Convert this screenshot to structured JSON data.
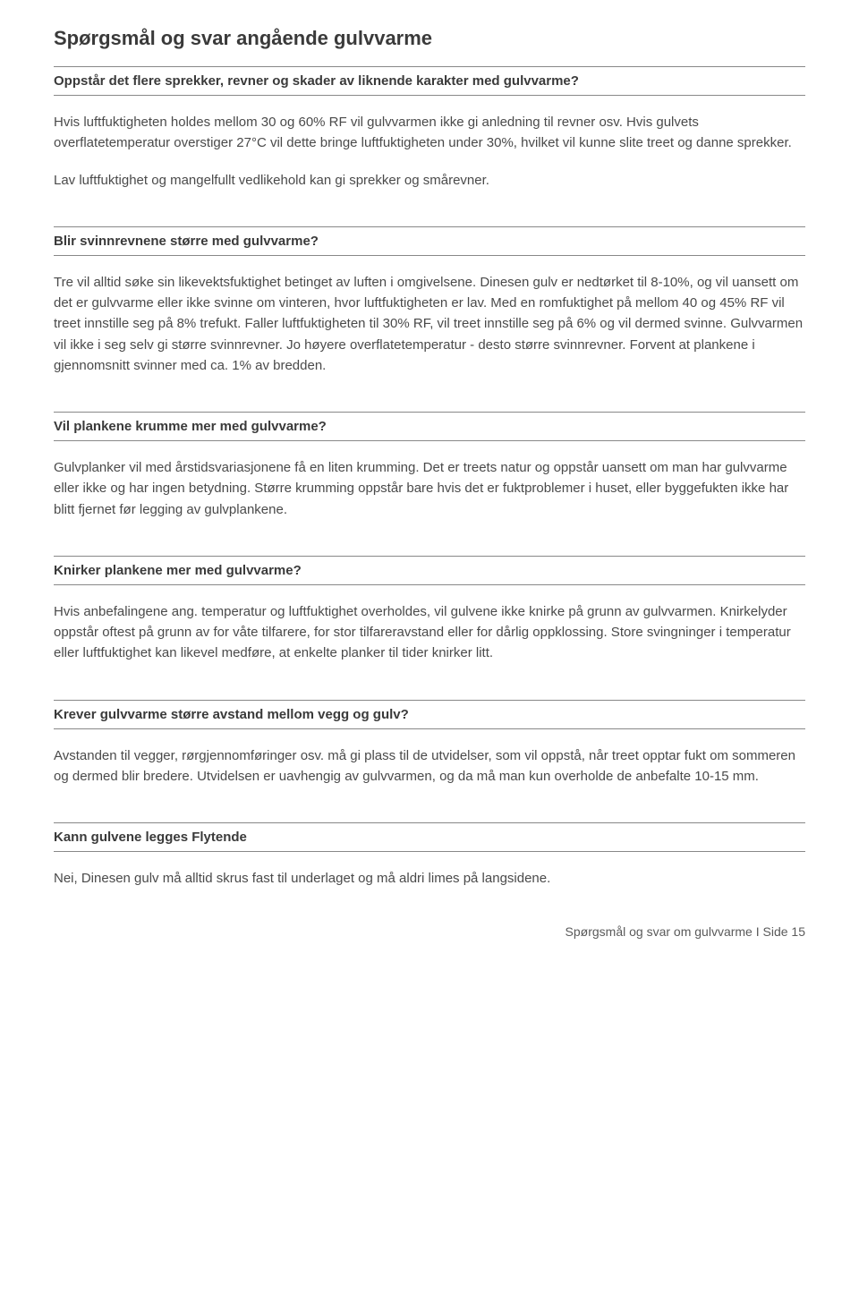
{
  "title": "Spørgsmål og svar angående gulvvarme",
  "sections": [
    {
      "heading": "Oppstår det flere sprekker, revner og skader av liknende karakter med gulvvarme?",
      "paragraphs": [
        "Hvis luftfuktigheten holdes mellom 30 og 60% RF vil gulvvarmen ikke gi anledning til revner osv. Hvis gulvets overflatetemperatur overstiger 27°C vil dette bringe luftfuktigheten under 30%, hvilket vil kunne slite treet og danne sprekker.",
        "Lav luftfuktighet og mangelfullt vedlikehold kan gi sprekker og smårevner."
      ]
    },
    {
      "heading": "Blir svinnrevnene større med gulvvarme?",
      "paragraphs": [
        "Tre vil alltid søke sin likevektsfuktighet betinget av luften i omgivelsene. Dinesen gulv er nedtørket til 8-10%, og vil uansett om det er gulvvarme eller ikke svinne om vinteren, hvor luftfuktigheten er lav. Med en romfuktighet på mellom 40 og 45% RF vil treet innstille seg på 8% trefukt. Faller luftfuktigheten til 30% RF, vil treet innstille seg på 6% og vil dermed svinne. Gulvvarmen vil ikke i seg selv gi større svinnrevner. Jo høyere overflatetemperatur - desto større svinnrevner. Forvent at plankene i gjennomsnitt svinner med ca. 1% av bredden."
      ]
    },
    {
      "heading": "Vil plankene krumme mer med gulvvarme?",
      "paragraphs": [
        "Gulvplanker vil med årstidsvariasjonene få en liten krumming. Det er treets natur og oppstår uansett om man har gulvvarme eller ikke og har ingen betydning. Større krumming oppstår bare hvis det er fuktproblemer i huset, eller byggefukten ikke har blitt fjernet før legging av gulvplankene."
      ]
    },
    {
      "heading": "Knirker plankene mer med gulvvarme?",
      "paragraphs": [
        "Hvis anbefalingene ang. temperatur og luftfuktighet overholdes, vil gulvene ikke knirke på grunn av gulvvarmen. Knirkelyder oppstår oftest på grunn av for våte tilfarere, for stor tilfareravstand eller for dårlig oppklossing. Store svingninger i temperatur eller luftfuktighet kan likevel medføre, at enkelte planker til tider knirker litt."
      ]
    },
    {
      "heading": "Krever gulvvarme større avstand mellom vegg og gulv?",
      "paragraphs": [
        "Avstanden til vegger, rørgjennomføringer osv. må gi plass til de utvidelser, som vil oppstå, når treet opptar fukt om sommeren og dermed blir bredere. Utvidelsen er uavhengig av gulvvarmen, og da må man kun overholde de anbefalte 10-15 mm."
      ]
    },
    {
      "heading": "Kann gulvene legges Flytende",
      "paragraphs": [
        "Nei, Dinesen gulv må alltid skrus fast til underlaget og må aldri limes på langsidene."
      ]
    }
  ],
  "footer": "Spørgsmål og svar om gulvvarme  I  Side 15"
}
